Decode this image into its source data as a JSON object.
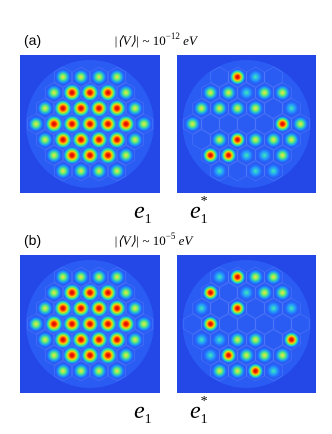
{
  "panels": [
    {
      "label": "(a)",
      "annotation": {
        "magnitude": "|⟨V⟩|",
        "approx": " ~ 10",
        "exponent": "−12",
        "unit": " eV"
      },
      "left_caption": {
        "symbol": "e",
        "subscript": "1"
      },
      "right_caption": {
        "symbol": "e",
        "subscript": "1",
        "superscript": "*"
      }
    },
    {
      "label": "(b)",
      "annotation": {
        "magnitude": "|⟨V⟩|",
        "approx": " ~ 10",
        "exponent": "−5",
        "unit": " eV"
      },
      "left_caption": {
        "symbol": "e",
        "subscript": "1"
      },
      "right_caption": {
        "symbol": "e",
        "subscript": "1",
        "superscript": "*"
      }
    }
  ]
}
